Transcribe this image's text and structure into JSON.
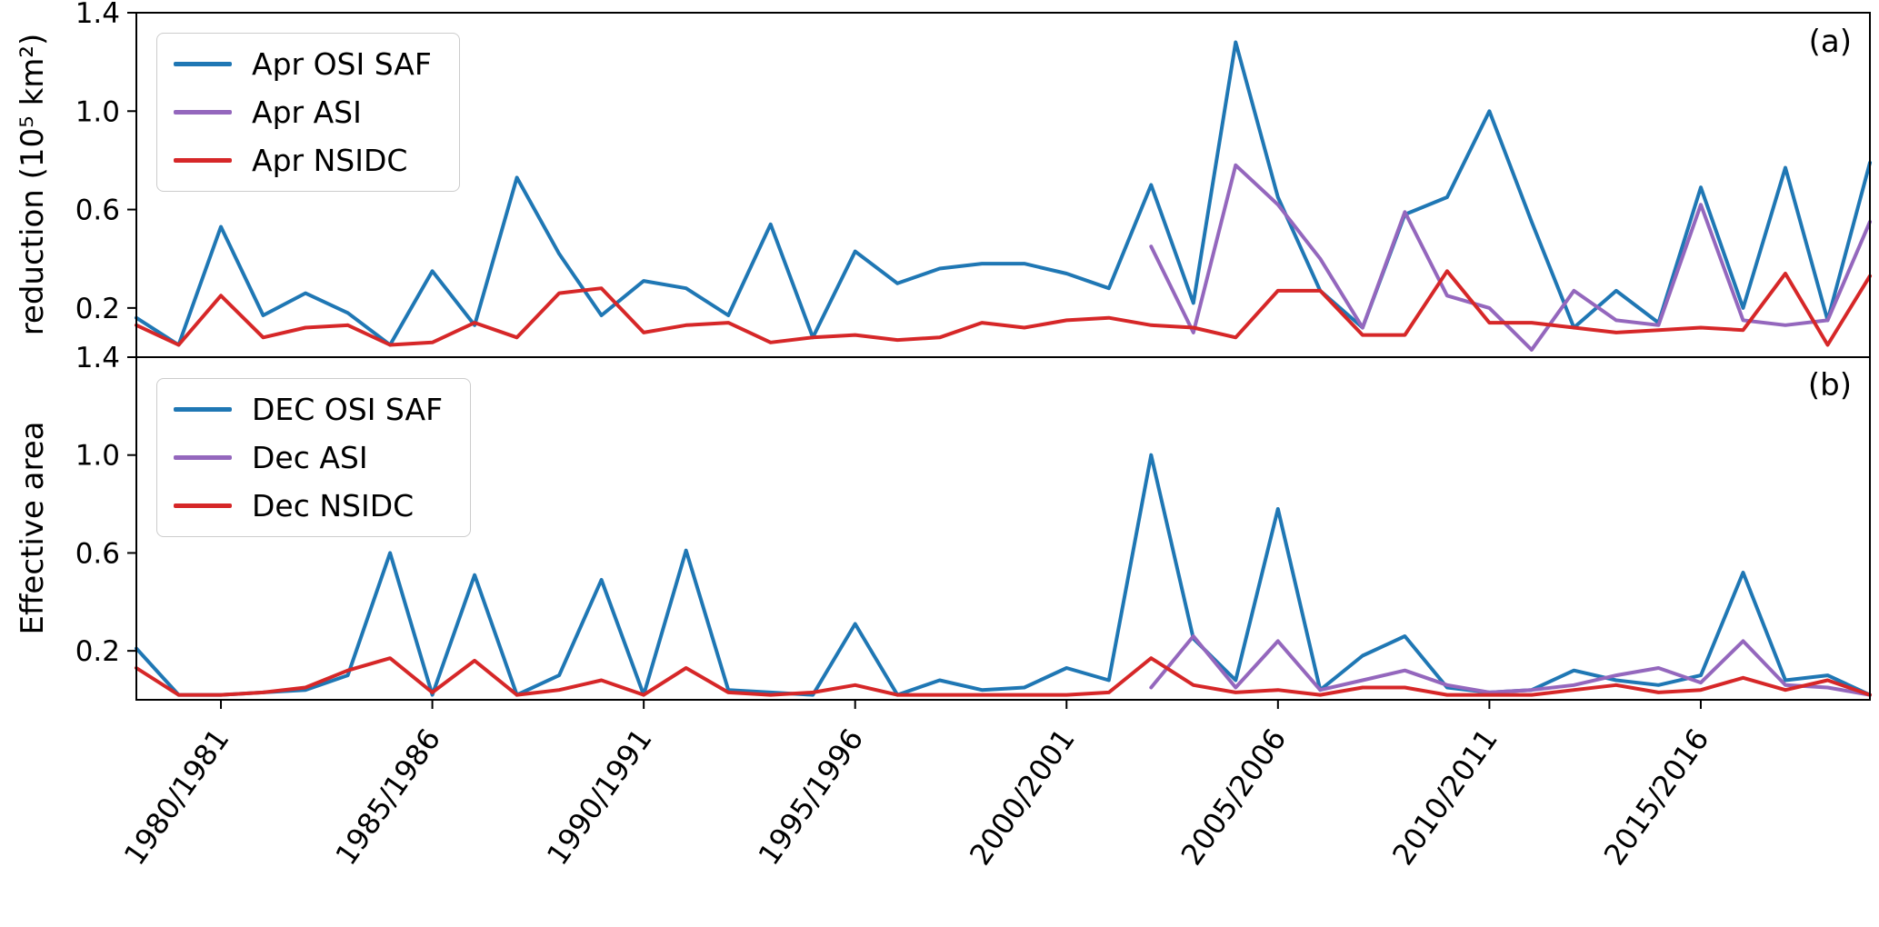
{
  "figure": {
    "background": "#ffffff",
    "axis_color": "#000000"
  },
  "ylabels": {
    "top": "reduction (10⁵ km²)",
    "bottom": "Effective area"
  },
  "chart_data": [
    {
      "type": "line",
      "panel_label": "(a)",
      "ylabel": "reduction (10⁵ km²)",
      "ylim": [
        0,
        1.4
      ],
      "yticks": [
        0.2,
        0.6,
        1.0,
        1.4
      ],
      "grid": false,
      "legend_position": "upper left",
      "x": [
        1978,
        1979,
        1980,
        1981,
        1982,
        1983,
        1984,
        1985,
        1986,
        1987,
        1988,
        1989,
        1990,
        1991,
        1992,
        1993,
        1994,
        1995,
        1996,
        1997,
        1998,
        1999,
        2000,
        2001,
        2002,
        2003,
        2004,
        2005,
        2006,
        2007,
        2008,
        2009,
        2010,
        2011,
        2012,
        2013,
        2014,
        2015,
        2016,
        2017,
        2018,
        2019
      ],
      "series": [
        {
          "name": "Apr OSI SAF",
          "color": "#1f77b4",
          "values": [
            0.16,
            0.05,
            0.53,
            0.17,
            0.26,
            0.18,
            0.05,
            0.35,
            0.13,
            0.73,
            0.42,
            0.17,
            0.31,
            0.28,
            0.17,
            0.54,
            0.08,
            0.43,
            0.3,
            0.36,
            0.38,
            0.38,
            0.34,
            0.28,
            0.7,
            0.22,
            1.28,
            0.65,
            0.27,
            0.12,
            0.58,
            0.65,
            1.0,
            0.55,
            0.12,
            0.27,
            0.14,
            0.69,
            0.2,
            0.77,
            0.15,
            0.79
          ]
        },
        {
          "name": "Apr ASI",
          "color": "#9467bd",
          "values": [
            null,
            null,
            null,
            null,
            null,
            null,
            null,
            null,
            null,
            null,
            null,
            null,
            null,
            null,
            null,
            null,
            null,
            null,
            null,
            null,
            null,
            null,
            null,
            null,
            0.45,
            0.1,
            0.78,
            0.62,
            0.4,
            0.12,
            0.59,
            0.25,
            0.2,
            0.03,
            0.27,
            0.15,
            0.13,
            0.62,
            0.15,
            0.13,
            0.15,
            0.55
          ]
        },
        {
          "name": "Apr NSIDC",
          "color": "#d62728",
          "values": [
            0.13,
            0.05,
            0.25,
            0.08,
            0.12,
            0.13,
            0.05,
            0.06,
            0.14,
            0.08,
            0.26,
            0.28,
            0.1,
            0.13,
            0.14,
            0.06,
            0.08,
            0.09,
            0.07,
            0.08,
            0.14,
            0.12,
            0.15,
            0.16,
            0.13,
            0.12,
            0.08,
            0.27,
            0.27,
            0.09,
            0.09,
            0.35,
            0.14,
            0.14,
            0.12,
            0.1,
            0.11,
            0.12,
            0.11,
            0.34,
            0.05,
            0.33
          ]
        }
      ]
    },
    {
      "type": "line",
      "panel_label": "(b)",
      "ylabel": "Effective area",
      "ylim": [
        0,
        1.4
      ],
      "yticks": [
        0.2,
        0.6,
        1.0,
        1.4
      ],
      "grid": false,
      "legend_position": "upper left",
      "x": [
        1978,
        1979,
        1980,
        1981,
        1982,
        1983,
        1984,
        1985,
        1986,
        1987,
        1988,
        1989,
        1990,
        1991,
        1992,
        1993,
        1994,
        1995,
        1996,
        1997,
        1998,
        1999,
        2000,
        2001,
        2002,
        2003,
        2004,
        2005,
        2006,
        2007,
        2008,
        2009,
        2010,
        2011,
        2012,
        2013,
        2014,
        2015,
        2016,
        2017,
        2018,
        2019
      ],
      "xtick_positions": [
        1980,
        1985,
        1990,
        1995,
        2000,
        2005,
        2010,
        2015
      ],
      "xtick_labels": [
        "1980/1981",
        "1985/1986",
        "1990/1991",
        "1995/1996",
        "2000/2001",
        "2005/2006",
        "2010/2011",
        "2015/2016"
      ],
      "series": [
        {
          "name": "DEC OSI SAF",
          "color": "#1f77b4",
          "values": [
            0.21,
            0.02,
            0.02,
            0.03,
            0.04,
            0.1,
            0.6,
            0.02,
            0.51,
            0.02,
            0.1,
            0.49,
            0.02,
            0.61,
            0.04,
            0.03,
            0.02,
            0.31,
            0.02,
            0.08,
            0.04,
            0.05,
            0.13,
            0.08,
            1.0,
            0.25,
            0.08,
            0.78,
            0.04,
            0.18,
            0.26,
            0.05,
            0.03,
            0.04,
            0.12,
            0.08,
            0.06,
            0.1,
            0.52,
            0.08,
            0.1,
            0.02
          ]
        },
        {
          "name": "Dec ASI",
          "color": "#9467bd",
          "values": [
            null,
            null,
            null,
            null,
            null,
            null,
            null,
            null,
            null,
            null,
            null,
            null,
            null,
            null,
            null,
            null,
            null,
            null,
            null,
            null,
            null,
            null,
            null,
            null,
            0.05,
            0.26,
            0.05,
            0.24,
            0.04,
            0.08,
            0.12,
            0.06,
            0.03,
            0.04,
            0.06,
            0.1,
            0.13,
            0.07,
            0.24,
            0.06,
            0.05,
            0.02
          ]
        },
        {
          "name": "Dec NSIDC",
          "color": "#d62728",
          "values": [
            0.13,
            0.02,
            0.02,
            0.03,
            0.05,
            0.12,
            0.17,
            0.03,
            0.16,
            0.02,
            0.04,
            0.08,
            0.02,
            0.13,
            0.03,
            0.02,
            0.03,
            0.06,
            0.02,
            0.02,
            0.02,
            0.02,
            0.02,
            0.03,
            0.17,
            0.06,
            0.03,
            0.04,
            0.02,
            0.05,
            0.05,
            0.02,
            0.02,
            0.02,
            0.04,
            0.06,
            0.03,
            0.04,
            0.09,
            0.04,
            0.08,
            0.02
          ]
        }
      ]
    }
  ]
}
